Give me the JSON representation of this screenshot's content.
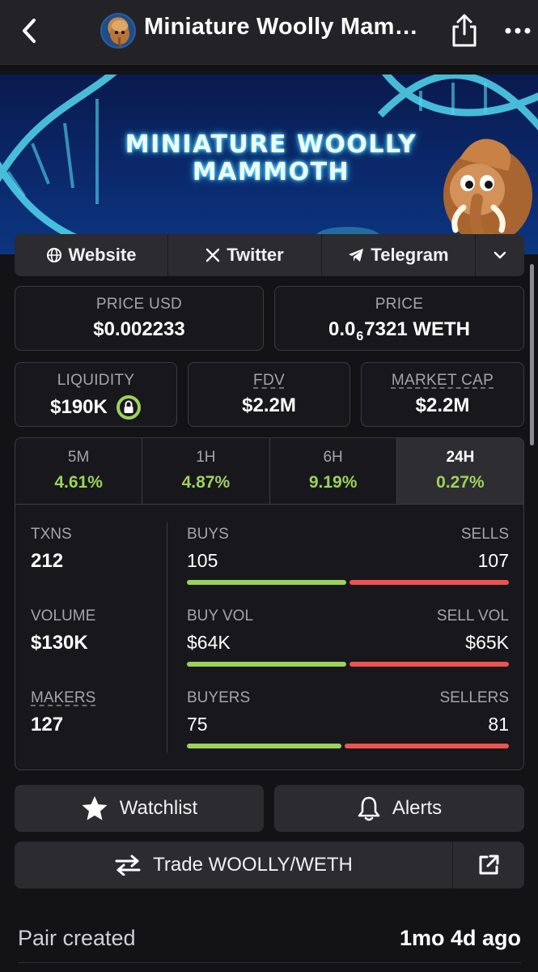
{
  "header": {
    "title": "Miniature Woolly Mam…"
  },
  "banner": {
    "line1": "MINIATURE WOOLLY",
    "line2": "MAMMOTH"
  },
  "links": [
    {
      "label": "Website",
      "icon": "globe-icon"
    },
    {
      "label": "Twitter",
      "icon": "x-icon"
    },
    {
      "label": "Telegram",
      "icon": "telegram-icon"
    }
  ],
  "price_usd": {
    "label": "PRICE USD",
    "value": "$0.002233"
  },
  "price_native": {
    "label": "PRICE",
    "prefix": "0.0",
    "subscript": "6",
    "suffix": "7321 WETH"
  },
  "liquidity": {
    "label": "LIQUIDITY",
    "value": "$190K"
  },
  "fdv": {
    "label": "FDV",
    "value": "$2.2M"
  },
  "market_cap": {
    "label": "MARKET CAP",
    "value": "$2.2M"
  },
  "tabs": [
    {
      "label": "5M",
      "value": "4.61%"
    },
    {
      "label": "1H",
      "value": "4.87%"
    },
    {
      "label": "6H",
      "value": "9.19%"
    },
    {
      "label": "24H",
      "value": "0.27%",
      "active": true
    }
  ],
  "stats": {
    "txns": {
      "label": "TXNS",
      "value": "212"
    },
    "volume": {
      "label": "VOLUME",
      "value": "$130K"
    },
    "makers": {
      "label": "MAKERS",
      "value": "127"
    },
    "buys": {
      "left_label": "BUYS",
      "right_label": "SELLS",
      "left_value": "105",
      "right_value": "107",
      "buy_fraction": 0.495
    },
    "vol": {
      "left_label": "BUY VOL",
      "right_label": "SELL VOL",
      "left_value": "$64K",
      "right_value": "$65K",
      "buy_fraction": 0.496
    },
    "buyers": {
      "left_label": "BUYERS",
      "right_label": "SELLERS",
      "left_value": "75",
      "right_value": "81",
      "buy_fraction": 0.481
    }
  },
  "actions": {
    "watchlist": "Watchlist",
    "alerts": "Alerts",
    "trade": "Trade WOOLLY/WETH"
  },
  "pair": {
    "label": "Pair created",
    "value": "1mo 4d ago"
  },
  "colors": {
    "positive": "#9bd35a",
    "negative": "#ef5350",
    "background": "#131316"
  }
}
